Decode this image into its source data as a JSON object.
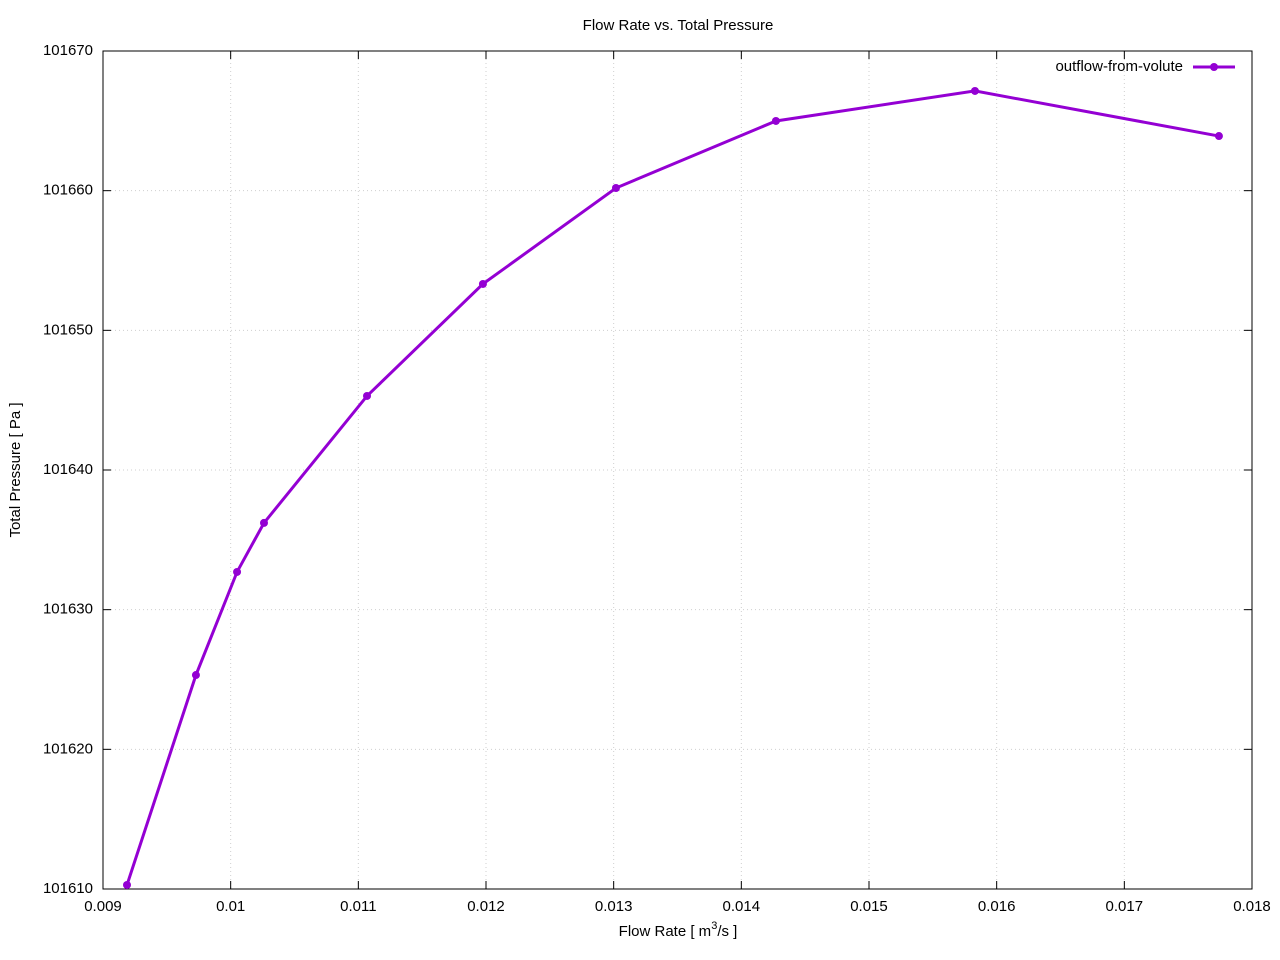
{
  "chart_data": {
    "type": "line",
    "title": "Flow Rate vs. Total Pressure",
    "xlabel": [
      "Flow Rate [ m",
      "3",
      "/s ]"
    ],
    "ylabel": "Total Pressure [ Pa ]",
    "x": [
      0.009188,
      0.009728,
      0.01005,
      0.010261,
      0.011068,
      0.011976,
      0.013018,
      0.014271,
      0.01583,
      0.017741
    ],
    "series": [
      {
        "name": "outflow-from-volute",
        "color": "#9400d3",
        "values": [
          101610.29,
          101625.32,
          101632.7,
          101636.21,
          101645.3,
          101653.32,
          101660.19,
          101664.99,
          101667.14,
          101663.91
        ]
      }
    ],
    "xlim": [
      0.009,
      0.018
    ],
    "xticks": [
      0.009,
      0.01,
      0.011,
      0.012,
      0.013,
      0.014,
      0.015,
      0.016,
      0.017,
      0.018
    ],
    "ylim": [
      101610,
      101670
    ],
    "yticks": [
      101610,
      101620,
      101630,
      101640,
      101650,
      101660,
      101670
    ],
    "grid": true,
    "legend": "top-right"
  }
}
